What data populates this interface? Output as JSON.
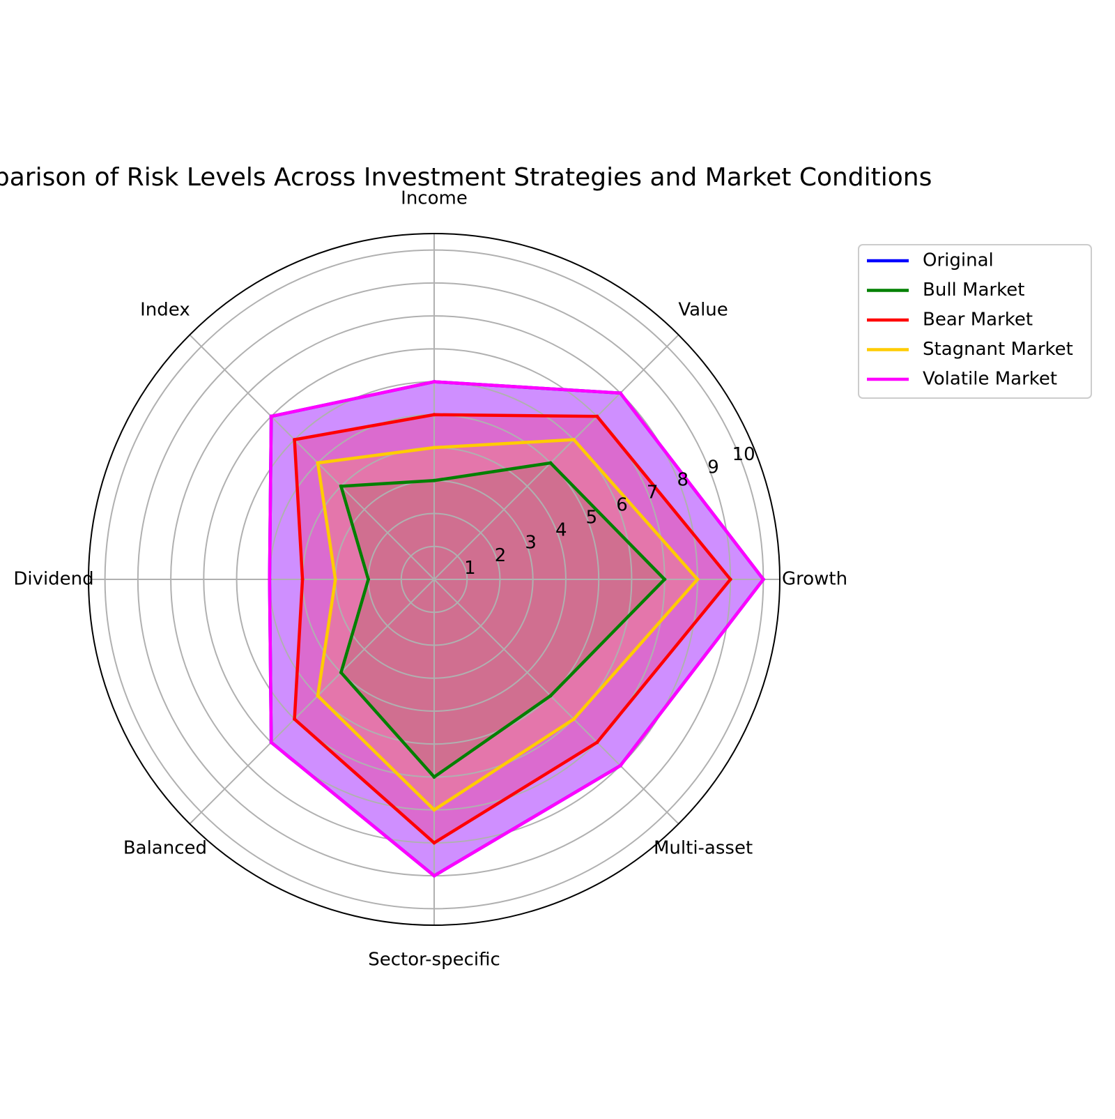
{
  "chart_data": {
    "type": "radar",
    "title": "Comparison of Risk Levels Across Investment Strategies and Market Conditions",
    "categories": [
      "Growth",
      "Value",
      "Income",
      "Index",
      "Dividend",
      "Balanced",
      "Sector-specific",
      "Multi-asset"
    ],
    "r_ticks": [
      "1",
      "2",
      "3",
      "4",
      "5",
      "6",
      "7",
      "8",
      "9",
      "10"
    ],
    "rlim": [
      0,
      10.5
    ],
    "grid": true,
    "legend_position": "upper right, outside plot",
    "series": [
      {
        "name": "Original",
        "color": "#0000ff",
        "values": [
          10,
          8,
          6,
          7,
          5,
          7,
          9,
          8
        ],
        "filled": true
      },
      {
        "name": "Bull Market",
        "color": "#008000",
        "values": [
          7,
          5,
          3,
          4,
          2,
          4,
          6,
          5
        ],
        "filled": true
      },
      {
        "name": "Bear Market",
        "color": "#ff0000",
        "values": [
          9,
          7,
          5,
          6,
          4,
          6,
          8,
          7
        ],
        "filled": true
      },
      {
        "name": "Stagnant Market",
        "color": "#ffcc00",
        "values": [
          8,
          6,
          4,
          5,
          3,
          5,
          7,
          6
        ],
        "filled": true
      },
      {
        "name": "Volatile Market",
        "color": "#ff00ff",
        "values": [
          10,
          8,
          6,
          7,
          5,
          7,
          9,
          8
        ],
        "filled": true
      }
    ]
  }
}
